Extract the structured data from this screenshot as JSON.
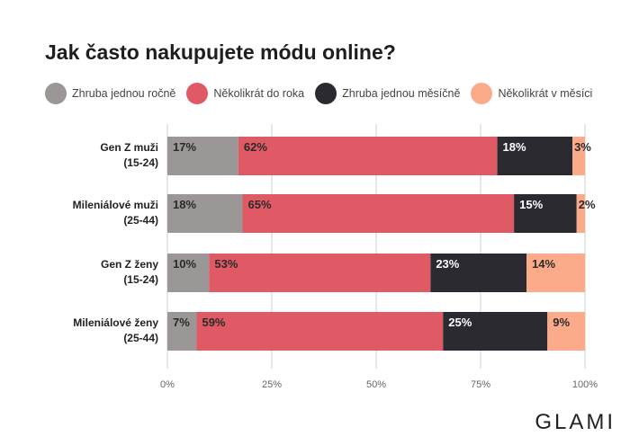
{
  "chart_data": {
    "type": "bar",
    "orientation": "horizontal",
    "stacked": true,
    "title": "Jak často nakupujete módu online?",
    "categories": [
      [
        "Gen Z muži",
        "(15-24)"
      ],
      [
        "Mileniálové muži",
        "(25-44)"
      ],
      [
        "Gen Z ženy",
        "(15-24)"
      ],
      [
        "Mileniálové ženy",
        "(25-44)"
      ]
    ],
    "series": [
      {
        "name": "Zhruba jednou ročně",
        "color": "#9b9797",
        "label_color": "#2a2a2a",
        "values": [
          17,
          18,
          10,
          7
        ]
      },
      {
        "name": "Několikrát do roka",
        "color": "#e05a66",
        "label_color": "#2a2a2a",
        "values": [
          62,
          65,
          53,
          59
        ]
      },
      {
        "name": "Zhruba jednou měsíčně",
        "color": "#2a2a30",
        "label_color": "#ffffff",
        "values": [
          18,
          15,
          23,
          25
        ]
      },
      {
        "name": "Několikrát v měsíci",
        "color": "#fcab8a",
        "label_color": "#2a2a2a",
        "values": [
          3,
          2,
          14,
          9
        ]
      }
    ],
    "xlim": [
      0,
      100
    ],
    "xticks": [
      "0%",
      "25%",
      "50%",
      "75%",
      "100%"
    ],
    "grid": true,
    "legend_position": "top-left"
  },
  "brand": "GLAMI"
}
